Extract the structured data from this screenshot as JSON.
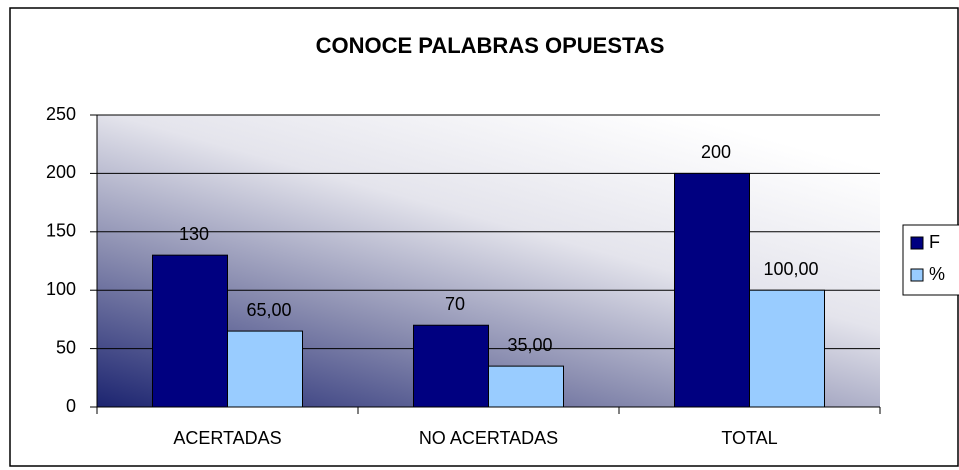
{
  "chart_data": {
    "type": "bar",
    "title": "CONOCE PALABRAS OPUESTAS",
    "categories": [
      "ACERTADAS",
      "NO ACERTADAS",
      "TOTAL"
    ],
    "series": [
      {
        "name": "F",
        "color": "#000080",
        "values": [
          130,
          70,
          200
        ]
      },
      {
        "name": "%",
        "color": "#99ccff",
        "values": [
          65,
          35,
          100
        ],
        "value_labels": [
          "65,00",
          "35,00",
          "100,00"
        ]
      }
    ],
    "ylim": [
      0,
      250
    ],
    "yticks": [
      0,
      50,
      100,
      150,
      200,
      250
    ],
    "grid": true,
    "legend": "right"
  }
}
